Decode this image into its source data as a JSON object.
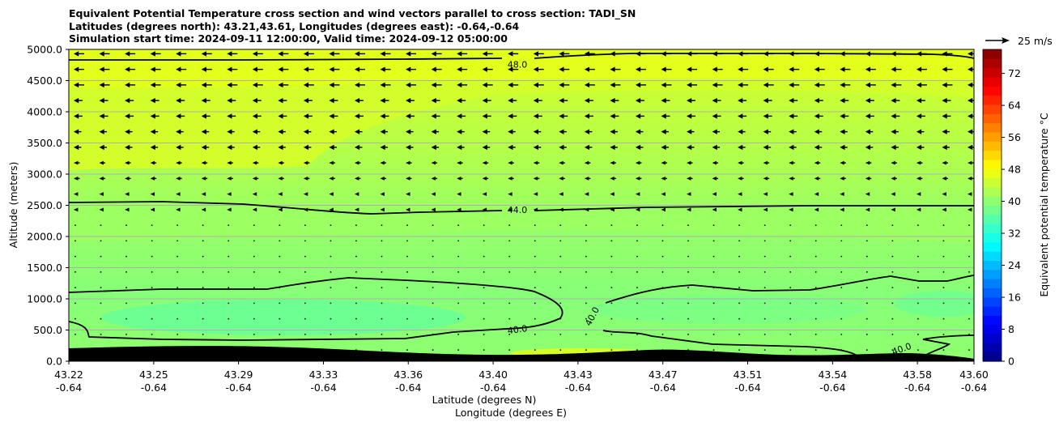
{
  "chart_data": {
    "type": "contourf",
    "title_lines": [
      "Equivalent Potential Temperature cross section and wind vectors parallel to cross section: TADI_SN",
      "Latitudes (degrees north): 43.21,43.61, Longitudes (degrees east): -0.64,-0.64",
      "Simulation start time: 2024-09-11 12:00:00, Valid time: 2024-09-12 05:00:00"
    ],
    "xlabel_line1": "Latitude (degrees N)",
    "xlabel_line2": "Longitude (degrees E)",
    "ylabel": "Altitude (meters)",
    "x_tick_lats": [
      "43.22",
      "43.25",
      "43.29",
      "43.33",
      "43.36",
      "43.40",
      "43.43",
      "43.47",
      "43.51",
      "43.54",
      "43.58",
      "43.60"
    ],
    "x_tick_lons": [
      "-0.64",
      "-0.64",
      "-0.64",
      "-0.64",
      "-0.64",
      "-0.64",
      "-0.64",
      "-0.64",
      "-0.64",
      "-0.64",
      "-0.64",
      "-0.64"
    ],
    "x_tick_fraction": [
      0,
      0.0938,
      0.1875,
      0.2813,
      0.375,
      0.4688,
      0.5625,
      0.6563,
      0.75,
      0.8438,
      0.9375,
      1.0
    ],
    "y_ticks": [
      "0.0",
      "500.0",
      "1000.0",
      "1500.0",
      "2000.0",
      "2500.0",
      "3000.0",
      "3500.0",
      "4000.0",
      "4500.0",
      "5000.0"
    ],
    "ylim": [
      0,
      5000
    ],
    "grid": "horizontal",
    "colorbar": {
      "label": "Equivalent potential temperature °C",
      "ticks": [
        "0",
        "8",
        "16",
        "24",
        "32",
        "40",
        "48",
        "56",
        "64",
        "72"
      ],
      "range": [
        0,
        78
      ],
      "colors": [
        "#00008f",
        "#0000ad",
        "#0000cc",
        "#0000ea",
        "#0008ff",
        "#0026ff",
        "#0044ff",
        "#0062ff",
        "#0080ff",
        "#009eff",
        "#00bcff",
        "#00daff",
        "#00f8ff",
        "#17ffe8",
        "#35ffca",
        "#53ffac",
        "#71ff8e",
        "#8fff70",
        "#adff52",
        "#cbff34",
        "#e9ff16",
        "#fff700",
        "#ffd900",
        "#ffbb00",
        "#ff9d00",
        "#ff7f00",
        "#ff6100",
        "#ff4300",
        "#ff2500",
        "#ff0700",
        "#e80000",
        "#ca0000",
        "#ac0000",
        "#8e0000"
      ]
    },
    "wind_key": "25 m/s",
    "contour_labels": [
      {
        "text": "48.0",
        "x_frac": 0.4955,
        "alt": 4760
      },
      {
        "text": "44.0",
        "x_frac": 0.4955,
        "alt": 2430
      },
      {
        "text": "40.0",
        "x_frac": 0.4955,
        "alt": 510
      },
      {
        "text": "40.0",
        "x_frac": 0.578,
        "alt": 720
      },
      {
        "text": "40.0",
        "x_frac": 0.92,
        "alt": 200
      }
    ]
  }
}
